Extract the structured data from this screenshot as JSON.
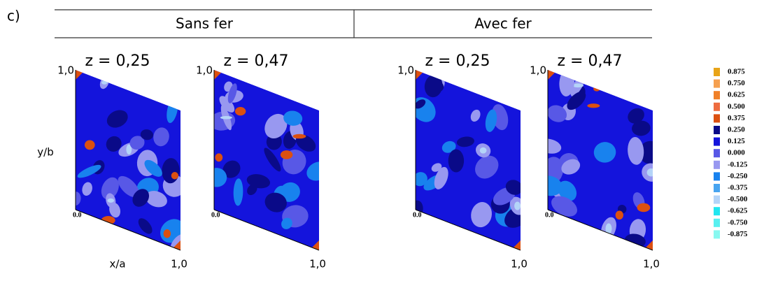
{
  "label": "c)",
  "groups": [
    "Sans fer",
    "Avec fer"
  ],
  "panels": [
    {
      "title": "z = 0,25",
      "top": "1,0",
      "origin": "0.0",
      "end": "1,0",
      "ylabel": "y/b",
      "xlabel": "x/a"
    },
    {
      "title": "z = 0,47",
      "top": "1,0",
      "origin": "0.0",
      "end": "1,0"
    },
    {
      "title": "z = 0,25",
      "top": "1,0",
      "origin": "0.0",
      "end": "1,0"
    },
    {
      "title": "z = 0,47",
      "top": "1,0",
      "origin": "0.0",
      "end": "1,0"
    }
  ],
  "legend": [
    {
      "label": "0.875",
      "color": "#e8a418"
    },
    {
      "label": "0.750",
      "color": "#f5a050"
    },
    {
      "label": "0.625",
      "color": "#f08028"
    },
    {
      "label": "0.500",
      "color": "#ee6c40"
    },
    {
      "label": "0.375",
      "color": "#dc5010"
    },
    {
      "label": "0.250",
      "color": "#0a0a88"
    },
    {
      "label": "0.125",
      "color": "#1414dc"
    },
    {
      "label": "0.000",
      "color": "#5858e6"
    },
    {
      "label": "-0.125",
      "color": "#9898f0"
    },
    {
      "label": "-0.250",
      "color": "#1882ee"
    },
    {
      "label": "-0.375",
      "color": "#48a4f0"
    },
    {
      "label": "-0.500",
      "color": "#b4d4f8"
    },
    {
      "label": "-0.625",
      "color": "#20e6f0"
    },
    {
      "label": "-0.750",
      "color": "#58f0f0"
    },
    {
      "label": "-0.875",
      "color": "#88f8f0"
    }
  ]
}
